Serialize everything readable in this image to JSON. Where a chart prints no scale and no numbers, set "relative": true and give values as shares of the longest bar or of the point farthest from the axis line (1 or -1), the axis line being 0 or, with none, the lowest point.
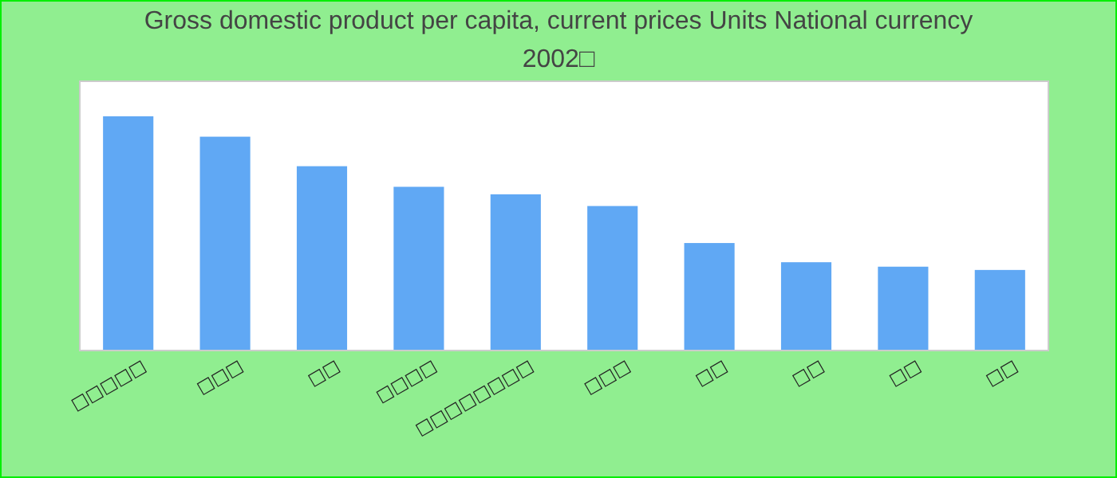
{
  "chart_data": {
    "type": "bar",
    "title": "Gross domestic product per capita, current prices Units National currency",
    "subtitle": "2002□",
    "categories": [
      "□□□□□",
      "□□□",
      "□□",
      "□□□□",
      "□□□□□□□□",
      "□□□",
      "□□",
      "□□",
      "□□",
      "□□"
    ],
    "values": [
      1,
      0.913,
      0.787,
      0.699,
      0.667,
      0.617,
      0.459,
      0.377,
      0.358,
      0.344
    ],
    "color": "#60a8f4",
    "relative": true
  }
}
